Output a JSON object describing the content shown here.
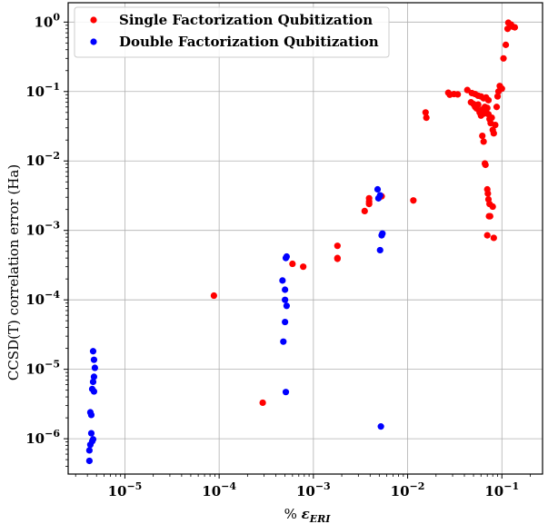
{
  "chart_data": {
    "type": "scatter",
    "xlabel_prefix": "%",
    "xlabel_symbol": "ε",
    "xlabel_subscript": "ERI",
    "ylabel": "CCSD(T) correlation error (Ha)",
    "x_scale": "log",
    "y_scale": "log",
    "xlim": [
      2.5e-06,
      0.27
    ],
    "ylim": [
      3.1e-07,
      1.9
    ],
    "grid": true,
    "legend_position": "top-left",
    "x_ticks": [
      {
        "value": 1e-05,
        "base": "10",
        "exp": "−5"
      },
      {
        "value": 0.0001,
        "base": "10",
        "exp": "−4"
      },
      {
        "value": 0.001,
        "base": "10",
        "exp": "−3"
      },
      {
        "value": 0.01,
        "base": "10",
        "exp": "−2"
      },
      {
        "value": 0.1,
        "base": "10",
        "exp": "−1"
      }
    ],
    "y_ticks": [
      {
        "value": 1e-06,
        "base": "10",
        "exp": "−6"
      },
      {
        "value": 1e-05,
        "base": "10",
        "exp": "−5"
      },
      {
        "value": 0.0001,
        "base": "10",
        "exp": "−4"
      },
      {
        "value": 0.001,
        "base": "10",
        "exp": "−3"
      },
      {
        "value": 0.01,
        "base": "10",
        "exp": "−2"
      },
      {
        "value": 0.1,
        "base": "10",
        "exp": "−1"
      },
      {
        "value": 1,
        "base": "10",
        "exp": "0"
      }
    ],
    "series": [
      {
        "name": "Single Factorization Qubitization",
        "color": "#ff0000",
        "points": [
          [
            8.8e-05,
            0.000115
          ],
          [
            0.00029,
            3.3e-06
          ],
          [
            0.0006,
            0.00033
          ],
          [
            0.00078,
            0.0003
          ],
          [
            0.0018,
            0.0006
          ],
          [
            0.0018,
            0.0004
          ],
          [
            0.0018,
            0.00039
          ],
          [
            0.0035,
            0.0019
          ],
          [
            0.0039,
            0.0029
          ],
          [
            0.0039,
            0.0026
          ],
          [
            0.0039,
            0.0024
          ],
          [
            0.0053,
            0.0031
          ],
          [
            0.0115,
            0.0027
          ],
          [
            0.0155,
            0.05
          ],
          [
            0.0158,
            0.042
          ],
          [
            0.027,
            0.096
          ],
          [
            0.028,
            0.09
          ],
          [
            0.031,
            0.092
          ],
          [
            0.034,
            0.091
          ],
          [
            0.043,
            0.105
          ],
          [
            0.048,
            0.095
          ],
          [
            0.052,
            0.092
          ],
          [
            0.056,
            0.087
          ],
          [
            0.06,
            0.085
          ],
          [
            0.064,
            0.08
          ],
          [
            0.068,
            0.082
          ],
          [
            0.072,
            0.075
          ],
          [
            0.047,
            0.07
          ],
          [
            0.05,
            0.066
          ],
          [
            0.052,
            0.06
          ],
          [
            0.054,
            0.057
          ],
          [
            0.056,
            0.065
          ],
          [
            0.058,
            0.05
          ],
          [
            0.06,
            0.045
          ],
          [
            0.062,
            0.055
          ],
          [
            0.064,
            0.048
          ],
          [
            0.066,
            0.06
          ],
          [
            0.068,
            0.052
          ],
          [
            0.07,
            0.058
          ],
          [
            0.072,
            0.047
          ],
          [
            0.074,
            0.04
          ],
          [
            0.076,
            0.035
          ],
          [
            0.078,
            0.042
          ],
          [
            0.08,
            0.028
          ],
          [
            0.082,
            0.025
          ],
          [
            0.085,
            0.033
          ],
          [
            0.062,
            0.023
          ],
          [
            0.064,
            0.019
          ],
          [
            0.088,
            0.06
          ],
          [
            0.09,
            0.085
          ],
          [
            0.092,
            0.1
          ],
          [
            0.095,
            0.12
          ],
          [
            0.1,
            0.11
          ],
          [
            0.104,
            0.3
          ],
          [
            0.11,
            0.47
          ],
          [
            0.115,
            0.8
          ],
          [
            0.117,
            0.98
          ],
          [
            0.125,
            0.92
          ],
          [
            0.13,
            0.86
          ],
          [
            0.137,
            0.84
          ],
          [
            0.066,
            0.0092
          ],
          [
            0.067,
            0.0088
          ],
          [
            0.07,
            0.0039
          ],
          [
            0.071,
            0.0034
          ],
          [
            0.072,
            0.0028
          ],
          [
            0.074,
            0.0024
          ],
          [
            0.075,
            0.0016
          ],
          [
            0.073,
            0.0016
          ],
          [
            0.08,
            0.0022
          ],
          [
            0.07,
            0.00085
          ],
          [
            0.082,
            0.00078
          ]
        ]
      },
      {
        "name": "Double Factorization Qubitization",
        "color": "#0000ff",
        "points": [
          [
            4.2e-06,
            4.8e-07
          ],
          [
            4.2e-06,
            6.8e-07
          ],
          [
            4.3e-06,
            8.2e-07
          ],
          [
            4.5e-06,
            9.2e-07
          ],
          [
            4.6e-06,
            9.8e-07
          ],
          [
            4.4e-06,
            1.2e-06
          ],
          [
            4.3e-06,
            2.4e-06
          ],
          [
            4.4e-06,
            2.2e-06
          ],
          [
            4.6e-06,
            1.82e-05
          ],
          [
            4.7e-06,
            1.37e-05
          ],
          [
            4.8e-06,
            1.05e-05
          ],
          [
            4.7e-06,
            7.8e-06
          ],
          [
            4.6e-06,
            6.6e-06
          ],
          [
            4.5e-06,
            5.2e-06
          ],
          [
            4.7e-06,
            4.8e-06
          ],
          [
            0.00047,
            0.00019
          ],
          [
            0.0005,
            0.00014
          ],
          [
            0.0005,
            0.0001
          ],
          [
            0.00052,
            8.2e-05
          ],
          [
            0.0005,
            4.8e-05
          ],
          [
            0.00048,
            2.5e-05
          ],
          [
            0.00051,
            4.7e-06
          ],
          [
            0.00051,
            0.0004
          ],
          [
            0.00052,
            0.00042
          ],
          [
            0.0048,
            0.0039
          ],
          [
            0.0049,
            0.0029
          ],
          [
            0.0051,
            0.0032
          ],
          [
            0.0054,
            0.0009
          ],
          [
            0.0053,
            0.00085
          ],
          [
            0.0051,
            0.00052
          ],
          [
            0.0052,
            1.5e-06
          ]
        ]
      }
    ]
  }
}
